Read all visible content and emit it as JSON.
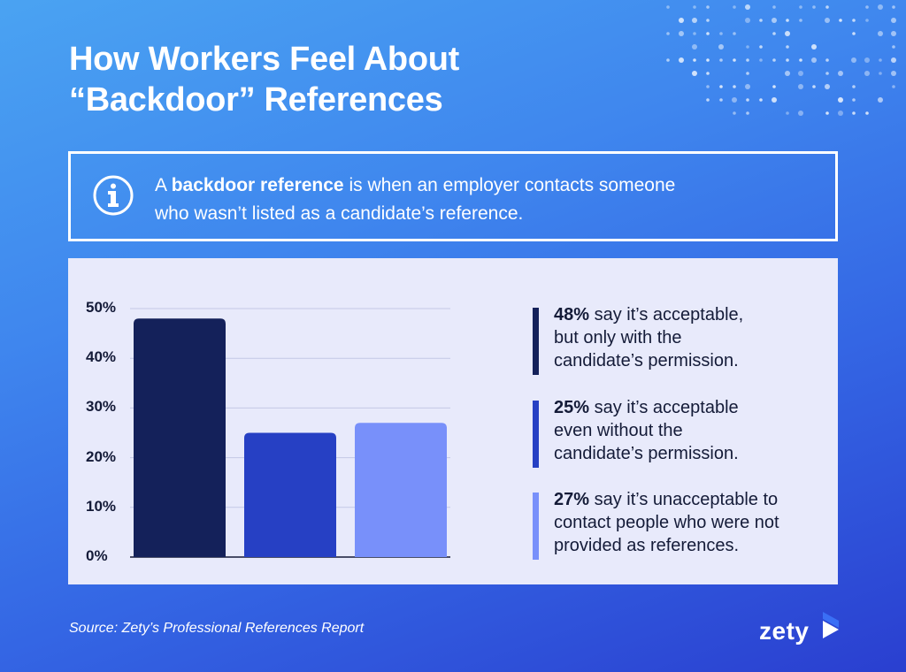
{
  "title_lines": [
    "How Workers Feel About",
    "“Backdoor” References"
  ],
  "info": {
    "icon": "info-icon",
    "prefix": "A ",
    "term": "backdoor reference",
    "suffix_line1": " is when an employer contacts someone",
    "line2": "who wasn’t listed as a candidate’s reference."
  },
  "chart_data": {
    "type": "bar",
    "categories": [
      "",
      "",
      ""
    ],
    "values": [
      48,
      25,
      27
    ],
    "colors": [
      "#14215a",
      "#2640c4",
      "#7890fa"
    ],
    "ylim": [
      0,
      50
    ],
    "y_ticks": [
      0,
      10,
      20,
      30,
      40,
      50
    ],
    "y_tick_labels": [
      "0%",
      "10%",
      "20%",
      "30%",
      "40%",
      "50%"
    ],
    "grid": true,
    "xlabel": "",
    "ylabel": ""
  },
  "legend": [
    {
      "value": "48%",
      "lines": [
        " say it’s acceptable,",
        "but only with the",
        "candidate’s permission."
      ],
      "color": "#14215a"
    },
    {
      "value": "25%",
      "lines": [
        " say it’s acceptable",
        "even without the",
        "candidate’s permission."
      ],
      "color": "#2640c4"
    },
    {
      "value": "27%",
      "lines": [
        " say it’s unacceptable to",
        "contact people who were not",
        "provided as references."
      ],
      "color": "#7890fa"
    }
  ],
  "source": "Source: Zety’s Professional References Report",
  "brand": {
    "name": "zety"
  }
}
